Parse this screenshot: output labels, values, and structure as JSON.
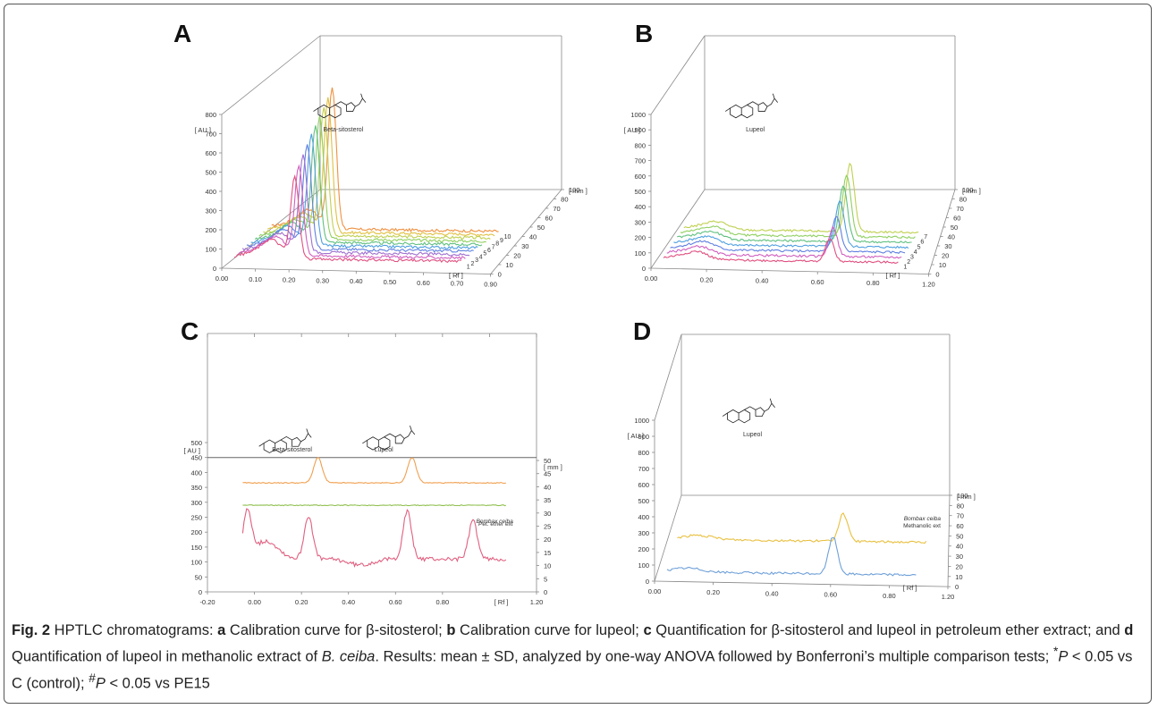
{
  "caption": {
    "fig_label": "Fig. 2",
    "text_1": " HPTLC chromatograms: ",
    "a": "a",
    "text_a": " Calibration curve for β-sitosterol; ",
    "b": "b",
    "text_b": " Calibration curve for lupeol; ",
    "c": "c",
    "text_c": " Quantification for β-sitosterol and lupeol in petroleum ether extract; and ",
    "d": "d",
    "text_d": " Quantification of lupeol in methanolic extract of ",
    "species": "B. ceiba",
    "text_e": ". Results: mean ± SD, analyzed by one-way ANOVA followed by Bonferroni’s multiple comparison tests; ",
    "star": "*",
    "p1": "P",
    "text_f": " < 0.05 vs C (control); ",
    "hash": "#",
    "p2": "P",
    "text_g": " < 0.05 vs PE15"
  },
  "chart_data": [
    {
      "panel": "A",
      "type": "line",
      "view": "3d",
      "y_unit": "[ AU ]",
      "x_unit": "[ Rf ]",
      "z_unit": "[ mm ]",
      "ylim": [
        0,
        800
      ],
      "y_ticks": [
        "0",
        "100",
        "200",
        "300",
        "400",
        "500",
        "600",
        "700",
        "800"
      ],
      "x_ticks": [
        "0.00",
        "0.10",
        "0.20",
        "0.30",
        "0.40",
        "0.50",
        "0.60",
        "0.70",
        "0.90"
      ],
      "z_ticks": [
        "0",
        "10",
        "20",
        "30",
        "40",
        "50",
        "60",
        "70",
        "80",
        "100"
      ],
      "compound_label": "Beta-sitosterol",
      "series": [
        {
          "name": "1",
          "color": "#e05080",
          "peak_rf": 0.24,
          "peak": 420
        },
        {
          "name": "2",
          "color": "#d060c0",
          "peak_rf": 0.24,
          "peak": 460
        },
        {
          "name": "3",
          "color": "#a070d0",
          "peak_rf": 0.24,
          "peak": 500
        },
        {
          "name": "4",
          "color": "#6080e0",
          "peak_rf": 0.24,
          "peak": 540
        },
        {
          "name": "5",
          "color": "#50a0e0",
          "peak_rf": 0.24,
          "peak": 570
        },
        {
          "name": "6",
          "color": "#60c080",
          "peak_rf": 0.24,
          "peak": 600
        },
        {
          "name": "7",
          "color": "#90d060",
          "peak_rf": 0.24,
          "peak": 630
        },
        {
          "name": "8",
          "color": "#c0d050",
          "peak_rf": 0.24,
          "peak": 660
        },
        {
          "name": "9",
          "color": "#e0c040",
          "peak_rf": 0.24,
          "peak": 690
        },
        {
          "name": "10",
          "color": "#f09040",
          "peak_rf": 0.24,
          "peak": 730
        }
      ]
    },
    {
      "panel": "B",
      "type": "line",
      "view": "3d",
      "y_unit": "[ AU ]",
      "x_unit": "[ Rf ]",
      "z_unit": "[ mm ]",
      "ylim": [
        0,
        1000
      ],
      "y_ticks": [
        "0",
        "100",
        "200",
        "300",
        "400",
        "500",
        "600",
        "700",
        "800",
        "900",
        "1000"
      ],
      "x_ticks": [
        "0.00",
        "0.20",
        "0.40",
        "0.60",
        "0.80",
        "1.20"
      ],
      "z_ticks": [
        "0",
        "10",
        "20",
        "30",
        "40",
        "50",
        "60",
        "70",
        "80",
        "100"
      ],
      "compound_label": "Lupeol",
      "series": [
        {
          "name": "1",
          "color": "#e05080",
          "peak_rf": 0.85,
          "peak": 150
        },
        {
          "name": "2",
          "color": "#d060c0",
          "peak_rf": 0.85,
          "peak": 190
        },
        {
          "name": "3",
          "color": "#6080e0",
          "peak_rf": 0.85,
          "peak": 230
        },
        {
          "name": "4",
          "color": "#50a0e0",
          "peak_rf": 0.85,
          "peak": 300
        },
        {
          "name": "5",
          "color": "#60c080",
          "peak_rf": 0.85,
          "peak": 360
        },
        {
          "name": "6",
          "color": "#90d060",
          "peak_rf": 0.85,
          "peak": 400
        },
        {
          "name": "7",
          "color": "#c0d050",
          "peak_rf": 0.85,
          "peak": 440
        }
      ]
    },
    {
      "panel": "C",
      "type": "line",
      "view": "2d",
      "y_unit": "[ AU ]",
      "x_unit": "[ Rf ]",
      "z_unit": "[ mm ]",
      "ylim": [
        0,
        500
      ],
      "xlim": [
        -0.2,
        1.2
      ],
      "y_ticks": [
        "0",
        "50",
        "100",
        "150",
        "200",
        "250",
        "300",
        "350",
        "400",
        "450",
        "500"
      ],
      "x_ticks": [
        "-0.20",
        "0.00",
        "0.20",
        "0.40",
        "0.60",
        "0.80",
        "1.20"
      ],
      "z_ticks": [
        "0",
        "5",
        "10",
        "15",
        "20",
        "25",
        "30",
        "35",
        "40",
        "45",
        "50"
      ],
      "compound_labels": [
        "Beta-sitosterol",
        "Lupeol"
      ],
      "sample_label_1": "Bombax ceiba",
      "sample_label_2": "Pet. ether ext",
      "series": [
        {
          "color": "#f0a050",
          "baseline": 365,
          "peaks": [
            {
              "rf": 0.27,
              "h": 85
            },
            {
              "rf": 0.67,
              "h": 85
            }
          ]
        },
        {
          "color": "#90c050",
          "baseline": 290,
          "peaks": []
        },
        {
          "color": "#e06080",
          "baseline": 110,
          "peaks": [
            {
              "rf": -0.03,
              "h": 150
            },
            {
              "rf": 0.23,
              "h": 145
            },
            {
              "rf": 0.65,
              "h": 160
            },
            {
              "rf": 0.93,
              "h": 130
            }
          ]
        }
      ]
    },
    {
      "panel": "D",
      "type": "line",
      "view": "3d",
      "y_unit": "[ AU ]",
      "x_unit": "[ Rf ]",
      "z_unit": "[ mm ]",
      "ylim": [
        0,
        1000
      ],
      "y_ticks": [
        "0",
        "100",
        "200",
        "300",
        "400",
        "500",
        "600",
        "700",
        "800",
        "900",
        "1000"
      ],
      "x_ticks": [
        "0.00",
        "0.20",
        "0.40",
        "0.60",
        "0.80",
        "1.20"
      ],
      "z_ticks": [
        "0",
        "10",
        "20",
        "30",
        "40",
        "50",
        "60",
        "70",
        "80",
        "100"
      ],
      "compound_label": "Lupeol",
      "sample_label_1": "Bombax ceiba",
      "sample_label_2": "Methanolic ext",
      "series": [
        {
          "color": "#6fa0d8",
          "peak_rf": 0.8,
          "peak": 230
        },
        {
          "color": "#e8c040",
          "peak_rf": 0.8,
          "peak": 170
        }
      ]
    }
  ]
}
